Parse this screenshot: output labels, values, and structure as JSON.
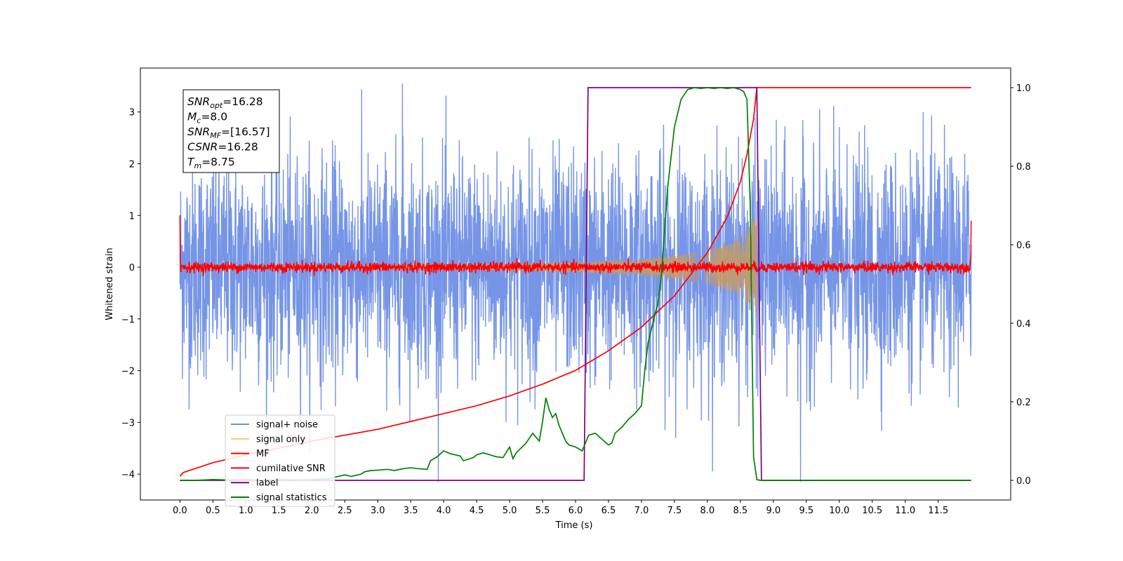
{
  "chart_data": {
    "type": "line",
    "xlabel": "Time (s)",
    "ylabel": "Whitened strain",
    "xlim": [
      -0.6,
      12.6
    ],
    "ylim_left": [
      -4.5,
      3.85
    ],
    "ylim_right": [
      -0.05,
      1.05
    ],
    "x_ticks": [
      0.0,
      0.5,
      1.0,
      1.5,
      2.0,
      2.5,
      3.0,
      3.5,
      4.0,
      4.5,
      5.0,
      5.5,
      6.0,
      6.5,
      7.0,
      7.5,
      8.0,
      8.5,
      9.0,
      9.5,
      10.0,
      10.5,
      11.0,
      11.5
    ],
    "x_tick_labels": [
      "0.0",
      "0.5",
      "1.0",
      "1.5",
      "2.0",
      "2.5",
      "3.0",
      "3.5",
      "4.0",
      "4.5",
      "5.0",
      "5.5",
      "6.0",
      "6.5",
      "7.0",
      "7.5",
      "8.0",
      "8.5",
      "9.0",
      "9.5",
      "10.0",
      "10.5",
      "11.0",
      "11.5"
    ],
    "y_ticks_left": [
      -4,
      -3,
      -2,
      -1,
      0,
      1,
      2,
      3
    ],
    "y_tick_labels_left": [
      "−4",
      "−3",
      "−2",
      "−1",
      "0",
      "1",
      "2",
      "3"
    ],
    "y_ticks_right": [
      0.0,
      0.2,
      0.4,
      0.6,
      0.8,
      1.0
    ],
    "y_tick_labels_right": [
      "0.0",
      "0.2",
      "0.4",
      "0.6",
      "0.8",
      "1.0"
    ],
    "grid": false,
    "legend_position": "bottom-left",
    "annotation": {
      "position": "top-left",
      "lines": [
        {
          "var": "SNR",
          "sub": "opt",
          "value": "=16.28"
        },
        {
          "var": "M",
          "sub": "c",
          "value": "=8.0"
        },
        {
          "var": "SNR",
          "sub": "MF",
          "value": "=[16.57]"
        },
        {
          "var": "CSNR",
          "sub": "",
          "value": "=16.28"
        },
        {
          "var": "T",
          "sub": "m",
          "value": "=8.75"
        }
      ]
    },
    "series": [
      {
        "name": "signal+ noise",
        "color": "#6f8fe6",
        "axis": "left",
        "kind": "noise",
        "x_range": [
          0.0,
          12.0
        ],
        "sigma": 1.0,
        "peak_max": 3.55,
        "peak_min": -4.15
      },
      {
        "name": "signal only",
        "color": "#f4c47a",
        "axis": "left",
        "kind": "chirp",
        "x_range": [
          0.0,
          8.75
        ],
        "envelope": {
          "x": [
            0.0,
            5.0,
            6.0,
            7.0,
            7.5,
            8.0,
            8.4,
            8.6,
            8.72,
            8.75
          ],
          "amp": [
            0.02,
            0.06,
            0.1,
            0.17,
            0.22,
            0.33,
            0.5,
            0.72,
            0.95,
            1.0
          ]
        }
      },
      {
        "name": "MF",
        "color": "#ff0000",
        "axis": "left",
        "kind": "noise",
        "x_range": [
          0.0,
          12.0
        ],
        "sigma": 0.05,
        "edge_values": [
          1.0,
          0.9
        ]
      },
      {
        "name": "cumilative SNR",
        "color": "#ff0000",
        "axis": "right",
        "x": [
          0.0,
          0.05,
          0.5,
          1.0,
          1.5,
          2.0,
          2.5,
          3.0,
          3.5,
          4.0,
          4.5,
          5.0,
          5.5,
          6.0,
          6.5,
          7.0,
          7.5,
          8.0,
          8.3,
          8.5,
          8.6,
          8.7,
          8.75,
          12.0
        ],
        "values": [
          0.01,
          0.02,
          0.045,
          0.065,
          0.082,
          0.1,
          0.115,
          0.13,
          0.15,
          0.17,
          0.19,
          0.215,
          0.245,
          0.28,
          0.33,
          0.39,
          0.47,
          0.58,
          0.67,
          0.76,
          0.83,
          0.92,
          1.0,
          1.0
        ]
      },
      {
        "name": "label",
        "color": "#800080",
        "axis": "right",
        "x": [
          0.0,
          6.13,
          6.19,
          8.75,
          8.82,
          12.0
        ],
        "values": [
          0.0,
          0.0,
          1.0,
          1.0,
          0.0,
          0.0
        ]
      },
      {
        "name": "signal statistics",
        "color": "#008000",
        "axis": "right",
        "x": [
          0.0,
          0.25,
          0.5,
          0.75,
          1.0,
          1.25,
          1.5,
          1.75,
          2.0,
          2.25,
          2.35,
          2.5,
          2.6,
          2.75,
          2.8,
          2.9,
          3.0,
          3.15,
          3.25,
          3.4,
          3.5,
          3.6,
          3.75,
          3.8,
          3.9,
          4.0,
          4.1,
          4.25,
          4.3,
          4.45,
          4.5,
          4.6,
          4.7,
          4.8,
          4.9,
          5.0,
          5.05,
          5.1,
          5.25,
          5.35,
          5.45,
          5.5,
          5.55,
          5.6,
          5.65,
          5.7,
          5.75,
          5.8,
          5.85,
          5.9,
          6.0,
          6.1,
          6.2,
          6.3,
          6.4,
          6.5,
          6.55,
          6.6,
          6.7,
          6.8,
          6.9,
          7.0,
          7.05,
          7.1,
          7.2,
          7.25,
          7.3,
          7.4,
          7.5,
          7.6,
          7.7,
          7.8,
          7.9,
          8.0,
          8.1,
          8.2,
          8.3,
          8.4,
          8.5,
          8.55,
          8.6,
          8.65,
          8.7,
          8.75,
          8.8,
          9.0,
          12.0
        ],
        "values": [
          0.0,
          0.0,
          0.002,
          0.001,
          0.002,
          0.0,
          0.002,
          0.001,
          0.002,
          0.004,
          0.008,
          0.014,
          0.01,
          0.016,
          0.022,
          0.025,
          0.026,
          0.028,
          0.025,
          0.03,
          0.032,
          0.03,
          0.028,
          0.05,
          0.06,
          0.075,
          0.068,
          0.062,
          0.05,
          0.058,
          0.065,
          0.07,
          0.065,
          0.06,
          0.058,
          0.085,
          0.055,
          0.07,
          0.095,
          0.12,
          0.1,
          0.15,
          0.21,
          0.18,
          0.16,
          0.17,
          0.14,
          0.12,
          0.1,
          0.09,
          0.085,
          0.075,
          0.115,
          0.12,
          0.105,
          0.09,
          0.095,
          0.12,
          0.135,
          0.155,
          0.17,
          0.19,
          0.28,
          0.35,
          0.42,
          0.45,
          0.52,
          0.75,
          0.9,
          0.97,
          0.995,
          1.0,
          0.998,
          1.0,
          0.998,
          1.0,
          0.998,
          1.0,
          0.995,
          0.99,
          0.97,
          0.7,
          0.06,
          0.002,
          0.0,
          0.0,
          0.0
        ]
      }
    ]
  }
}
